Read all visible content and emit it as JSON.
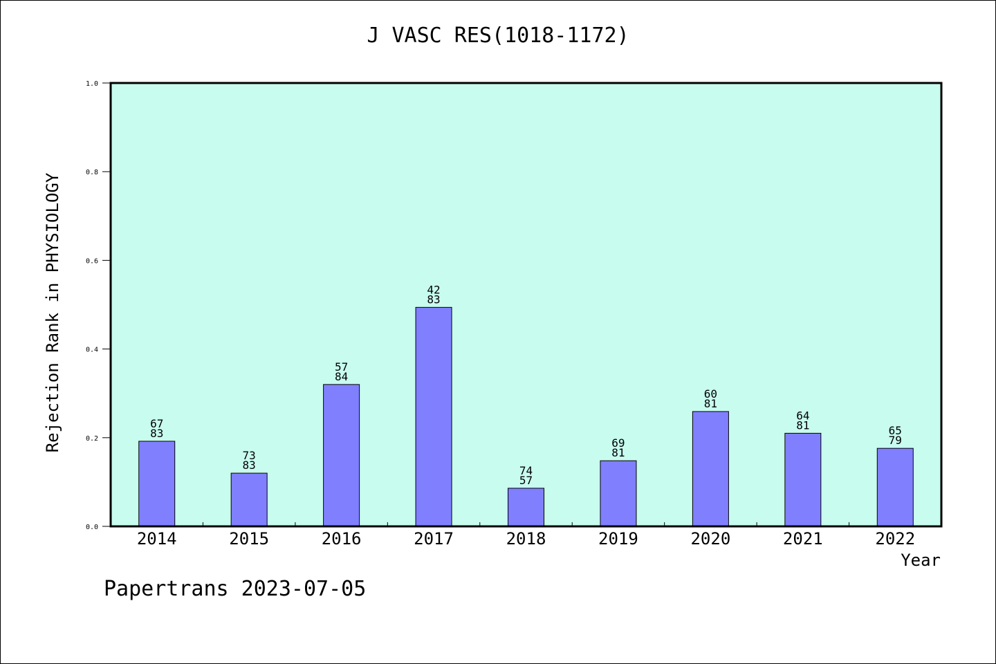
{
  "chart_data": {
    "type": "bar",
    "title": "J VASC RES(1018-1172)",
    "ylabel": "Rejection Rank in PHYSIOLOGY",
    "xlabel": "Year",
    "ylim": [
      0,
      1.0
    ],
    "yticks": [
      "0.0",
      "0.2",
      "0.4",
      "0.6",
      "0.8",
      "1.0"
    ],
    "categories": [
      "2014",
      "2015",
      "2016",
      "2017",
      "2018",
      "2019",
      "2020",
      "2021",
      "2022"
    ],
    "values": [
      0.192,
      0.12,
      0.32,
      0.494,
      0.086,
      0.148,
      0.259,
      0.21,
      0.176
    ],
    "labels_top": [
      "67",
      "73",
      "57",
      "42",
      "74",
      "69",
      "60",
      "64",
      "65"
    ],
    "labels_bottom": [
      "83",
      "83",
      "84",
      "83",
      "57",
      "81",
      "81",
      "81",
      "79"
    ],
    "grid": false,
    "colors": {
      "plot_bg": "#c8fcef",
      "bar": "#8080ff",
      "edge": "#000000"
    }
  },
  "footer": "Papertrans 2023-07-05"
}
